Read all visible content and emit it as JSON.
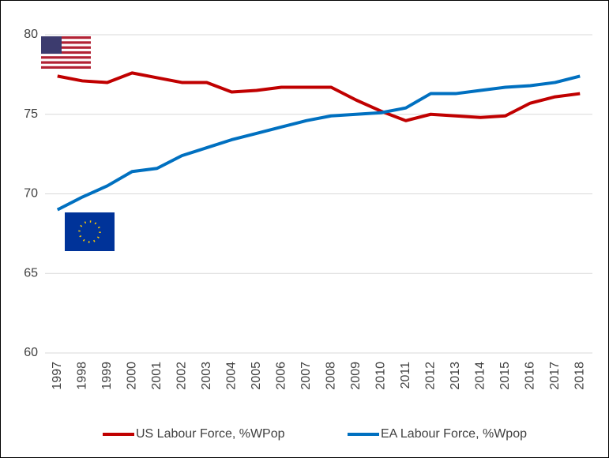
{
  "chart_data": {
    "type": "line",
    "categories": [
      "1997",
      "1998",
      "1999",
      "2000",
      "2001",
      "2002",
      "2003",
      "2004",
      "2005",
      "2006",
      "2007",
      "2008",
      "2009",
      "2010",
      "2011",
      "2012",
      "2013",
      "2014",
      "2015",
      "2016",
      "2017",
      "2018"
    ],
    "series": [
      {
        "name": "US Labour Force, %WPop",
        "color": "#c00000",
        "values": [
          77.4,
          77.1,
          77.0,
          77.6,
          77.3,
          77.0,
          77.0,
          76.4,
          76.5,
          76.7,
          76.7,
          76.7,
          75.9,
          75.2,
          74.6,
          75.0,
          74.9,
          74.8,
          74.9,
          75.7,
          76.1,
          76.3
        ]
      },
      {
        "name": "EA Labour Force, %Wpop",
        "color": "#0070c0",
        "values": [
          69.0,
          69.8,
          70.5,
          71.4,
          71.6,
          72.4,
          72.9,
          73.4,
          73.8,
          74.2,
          74.6,
          74.9,
          75.0,
          75.1,
          75.4,
          76.3,
          76.3,
          76.5,
          76.7,
          76.8,
          77.0,
          77.4
        ]
      }
    ],
    "ylim": [
      60,
      80
    ],
    "yticks": [
      60,
      65,
      70,
      75,
      80
    ],
    "grid": true,
    "legend": "bottom"
  }
}
